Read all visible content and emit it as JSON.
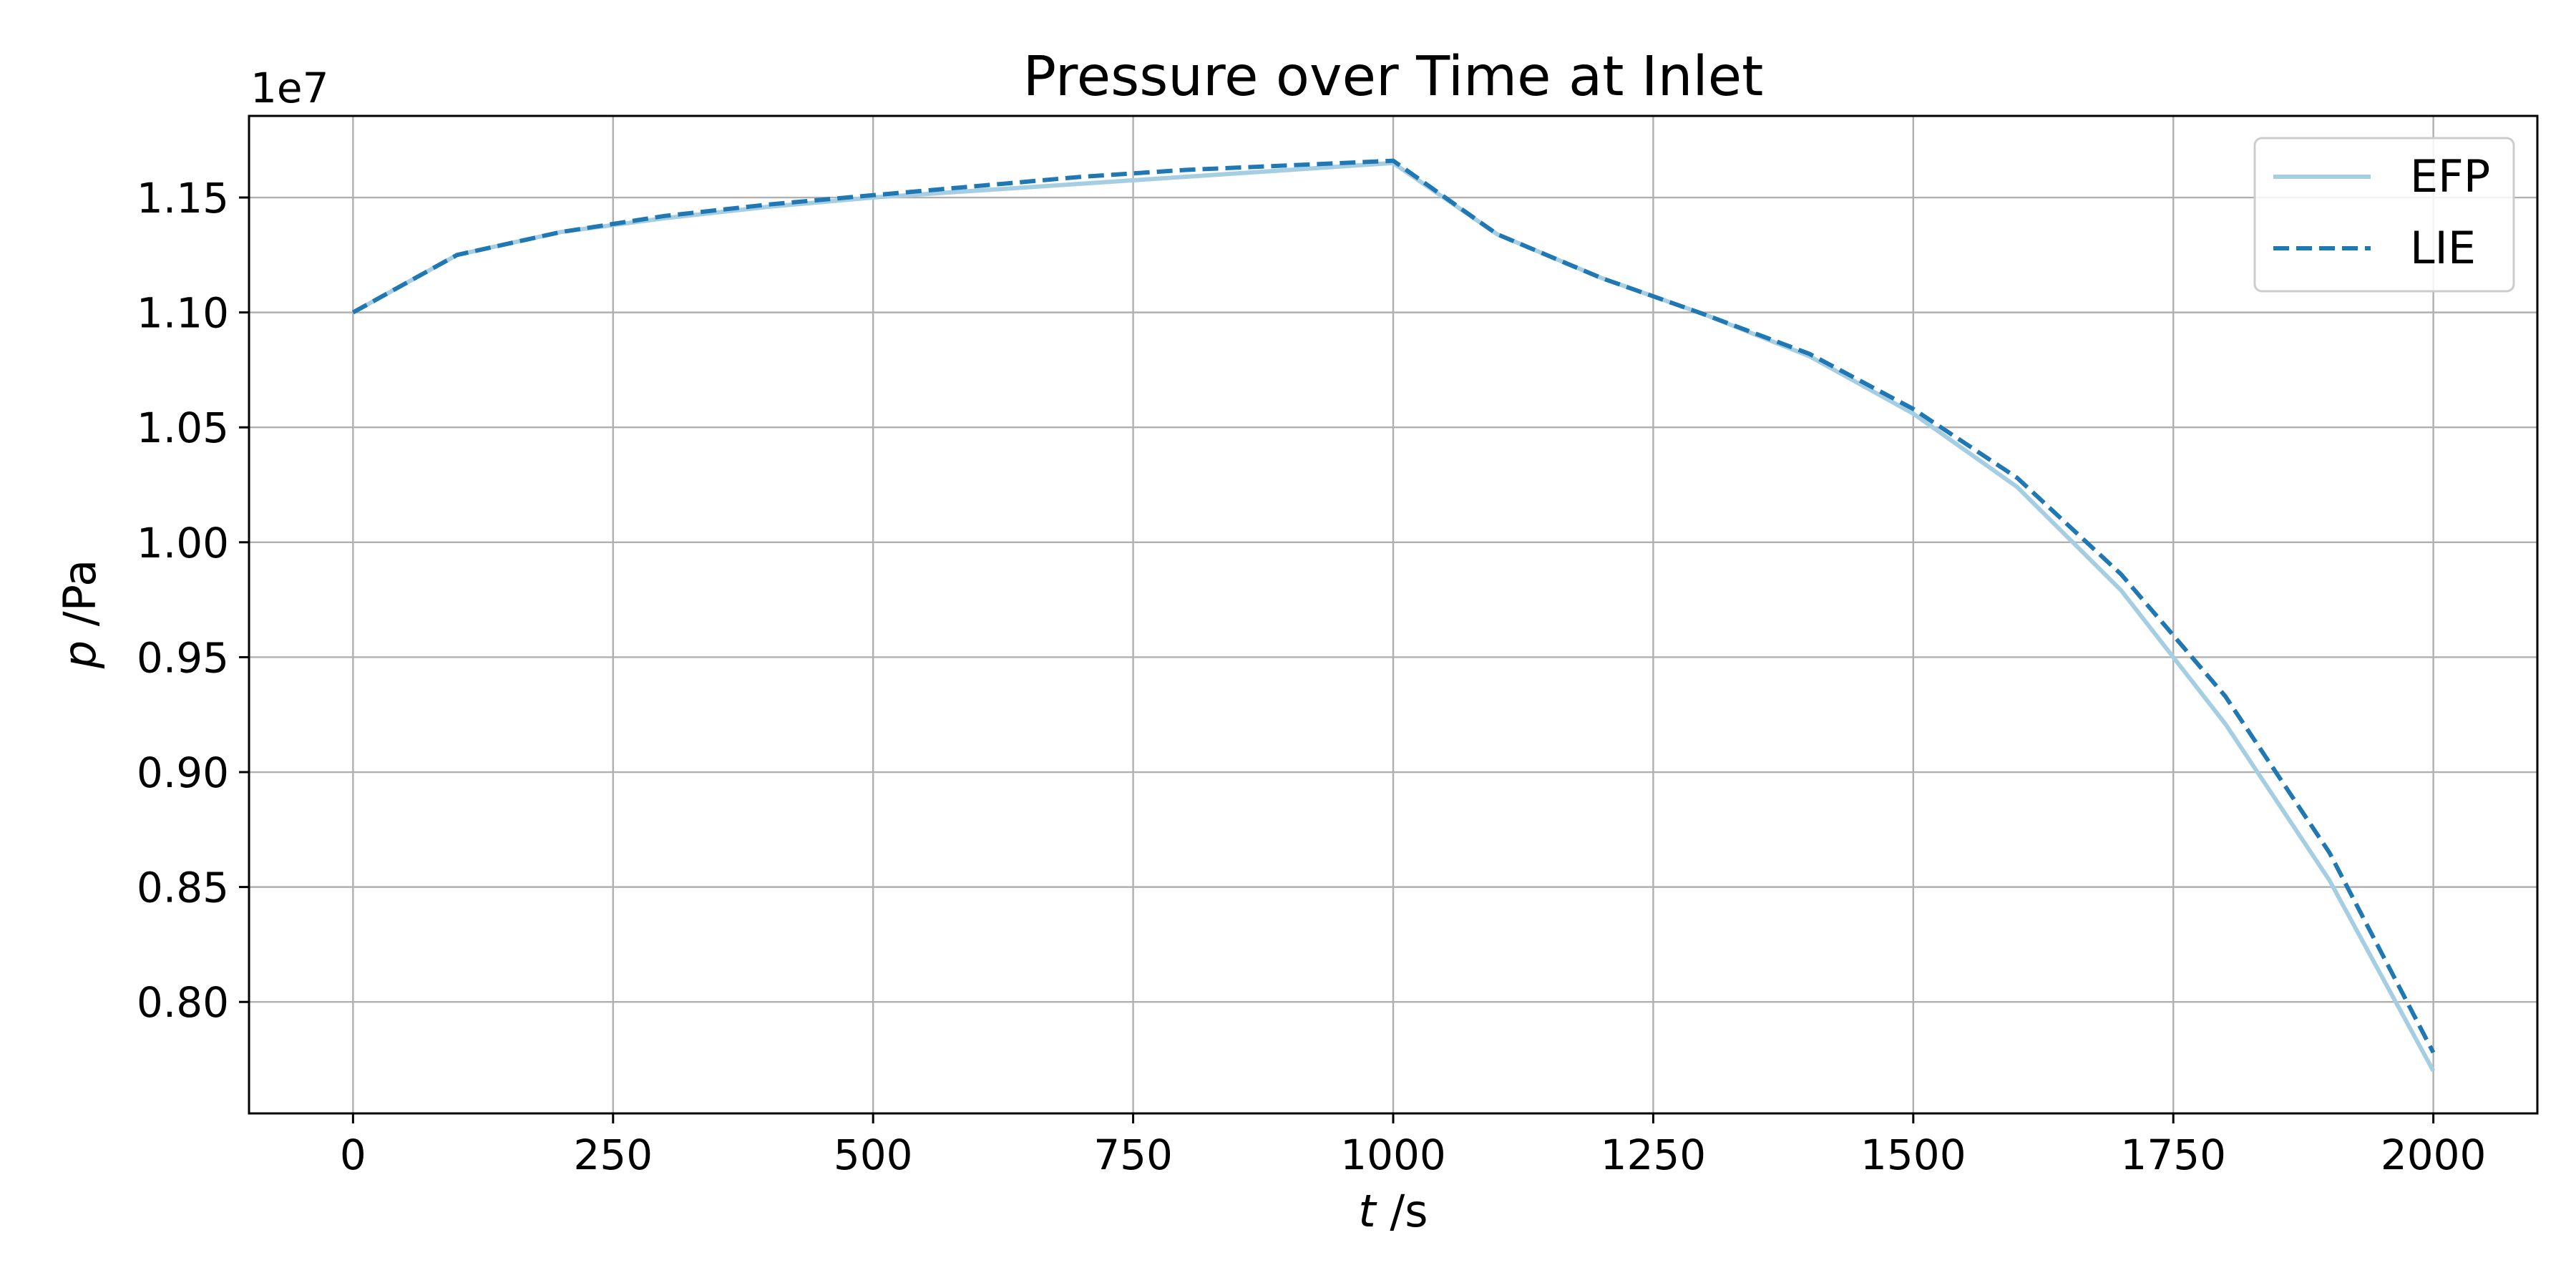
{
  "chart_data": {
    "type": "line",
    "title": "Pressure over Time at Inlet",
    "xlabel": {
      "var": "t",
      "unit": " /s"
    },
    "ylabel": {
      "var": "p",
      "unit": " /Pa"
    },
    "y_offset_label": "1e7",
    "xlim": [
      -100,
      2100
    ],
    "ylim": [
      0.7515,
      1.1855
    ],
    "x_ticks": [
      0,
      250,
      500,
      750,
      1000,
      1250,
      1500,
      1750,
      2000
    ],
    "x_tick_labels": [
      "0",
      "250",
      "500",
      "750",
      "1000",
      "1250",
      "1500",
      "1750",
      "2000"
    ],
    "y_ticks": [
      0.8,
      0.85,
      0.9,
      0.95,
      1.0,
      1.05,
      1.1,
      1.15
    ],
    "y_tick_labels": [
      "0.80",
      "0.85",
      "0.90",
      "0.95",
      "1.00",
      "1.05",
      "1.10",
      "1.15"
    ],
    "grid": true,
    "legend_position": "top-right",
    "x": [
      0,
      100,
      200,
      300,
      400,
      500,
      600,
      700,
      800,
      900,
      1000,
      1100,
      1200,
      1300,
      1400,
      1500,
      1600,
      1700,
      1800,
      1900,
      2000
    ],
    "series": [
      {
        "name": "EFP",
        "color": "#a6cee3",
        "style": "solid",
        "values": [
          1.1,
          1.125,
          1.135,
          1.141,
          1.146,
          1.15,
          1.153,
          1.156,
          1.159,
          1.162,
          1.165,
          1.134,
          1.115,
          1.099,
          1.081,
          1.056,
          1.024,
          0.979,
          0.921,
          0.853,
          0.77
        ]
      },
      {
        "name": "LIE",
        "color": "#1f78b4",
        "style": "dashed",
        "values": [
          1.1,
          1.125,
          1.135,
          1.142,
          1.147,
          1.151,
          1.155,
          1.159,
          1.162,
          1.164,
          1.166,
          1.134,
          1.115,
          1.099,
          1.082,
          1.058,
          1.028,
          0.986,
          0.933,
          0.865,
          0.778
        ]
      }
    ]
  }
}
